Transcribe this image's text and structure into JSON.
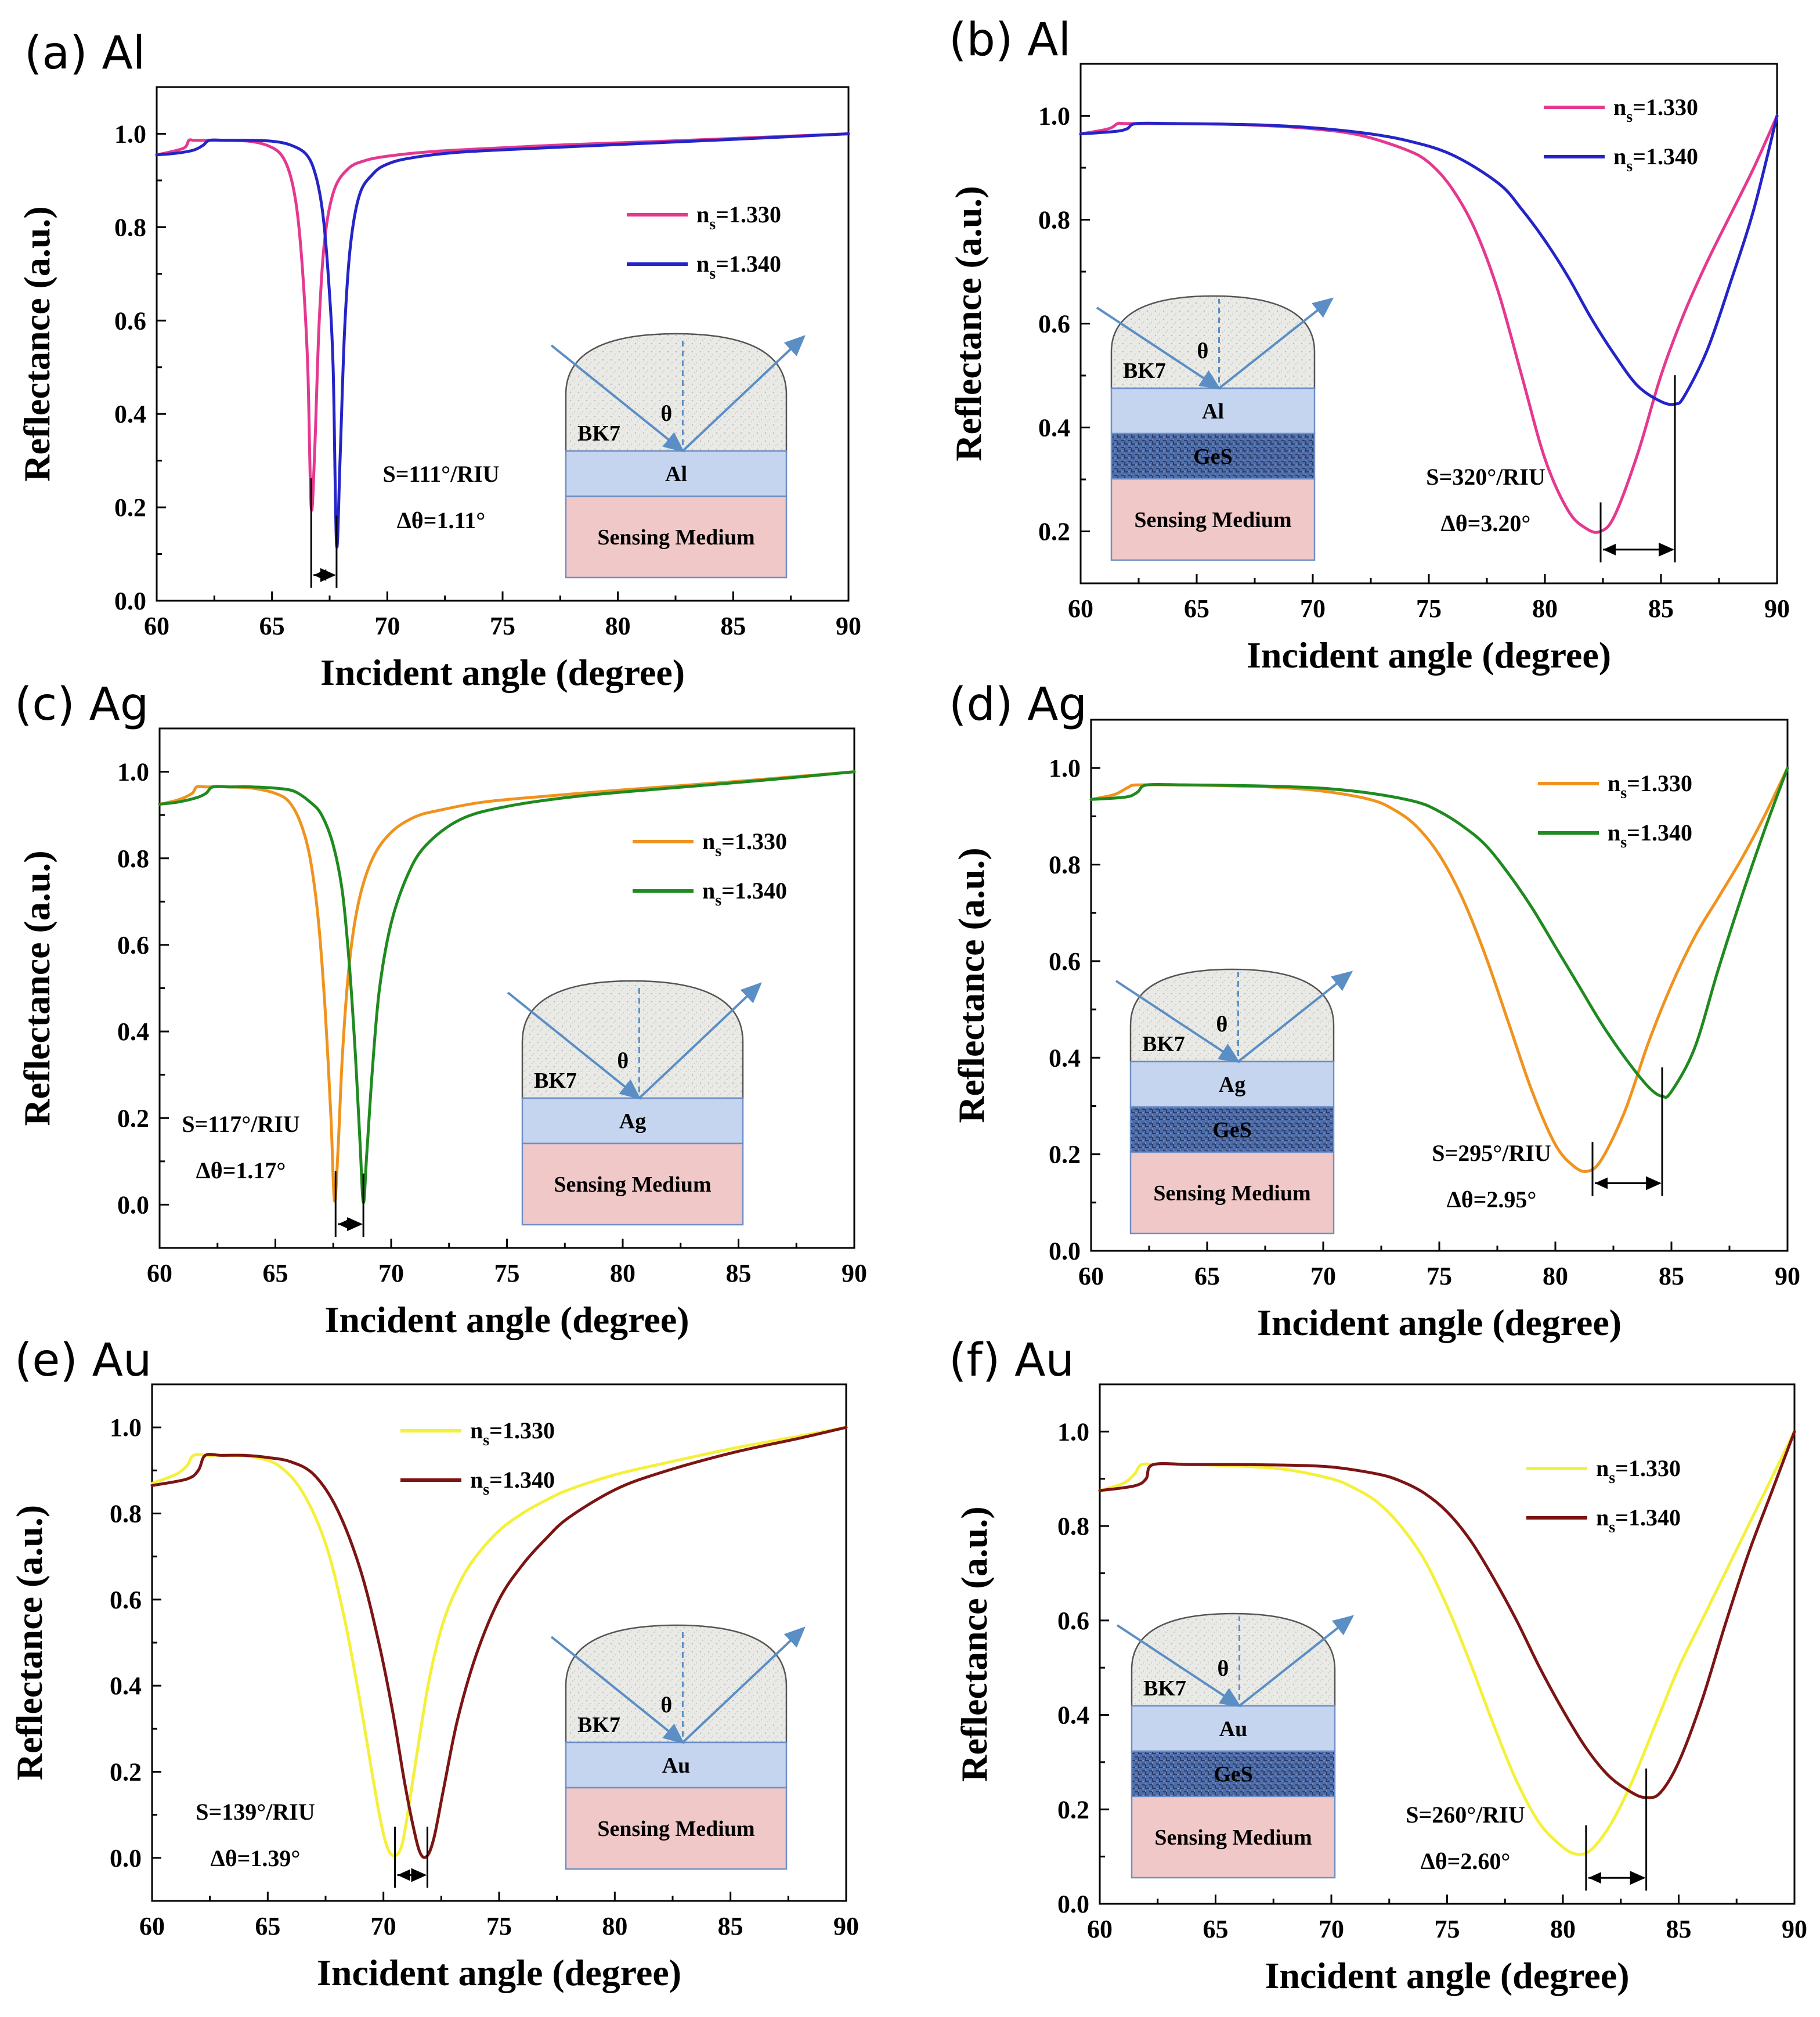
{
  "figure": {
    "colors": {
      "al_ns1": "#e5388f",
      "al_ns2": "#2424c8",
      "ag_ns1": "#f0931e",
      "ag_ns2": "#1f8a1f",
      "au_ns1": "#f5f03a",
      "au_ns2": "#7d1414",
      "prism": "#e9e9e6",
      "metal": "#c6d5ef",
      "ges": "#4d6ca8",
      "medium": "#f0c8c8",
      "layer_border": "#6f8fc6",
      "ray": "#5b8ec4"
    }
  },
  "chart_data": [
    {
      "id": "a",
      "panel_label": "(a) Al",
      "type": "line",
      "xlabel": "Incident angle (degree)",
      "ylabel": "Reflectance (a.u.)",
      "xlim": [
        60,
        90
      ],
      "ylim": [
        0,
        1.1
      ],
      "xticks": [
        "60",
        "65",
        "70",
        "75",
        "80",
        "85",
        "90"
      ],
      "yticks": [
        "0.0",
        "0.2",
        "0.4",
        "0.6",
        "0.8",
        "1.0"
      ],
      "legend": [
        {
          "prefix": "n",
          "sub": "s",
          "value": "=1.330"
        },
        {
          "prefix": "n",
          "sub": "s",
          "value": "=1.340"
        }
      ],
      "series": [
        {
          "name": "n_s=1.330",
          "x": [
            60,
            60.5,
            61.2,
            61.4,
            61.6,
            62,
            63,
            64,
            64.8,
            65.4,
            65.8,
            66.1,
            66.35,
            66.55,
            66.7,
            66.85,
            67.05,
            67.3,
            67.7,
            68.3,
            69,
            70,
            72,
            75,
            78,
            82,
            86,
            90
          ],
          "y": [
            0.955,
            0.96,
            0.97,
            0.986,
            0.986,
            0.986,
            0.986,
            0.984,
            0.975,
            0.955,
            0.91,
            0.83,
            0.69,
            0.5,
            0.2,
            0.32,
            0.6,
            0.78,
            0.88,
            0.925,
            0.942,
            0.952,
            0.962,
            0.97,
            0.977,
            0.984,
            0.992,
            1.0
          ]
        },
        {
          "name": "n_s=1.340",
          "x": [
            60,
            60.8,
            61.6,
            62,
            62.3,
            63,
            64,
            65,
            65.8,
            66.5,
            66.9,
            67.2,
            67.45,
            67.65,
            67.8,
            67.95,
            68.15,
            68.4,
            68.8,
            69.4,
            70,
            71,
            73,
            76,
            80,
            85,
            90
          ],
          "y": [
            0.955,
            0.958,
            0.965,
            0.975,
            0.986,
            0.986,
            0.986,
            0.984,
            0.976,
            0.955,
            0.91,
            0.83,
            0.69,
            0.5,
            0.12,
            0.3,
            0.58,
            0.76,
            0.87,
            0.915,
            0.935,
            0.948,
            0.96,
            0.968,
            0.977,
            0.988,
            1.0
          ]
        }
      ],
      "annotation": {
        "sensitivity": "S=111°/RIU",
        "shift": "Δθ=1.11°",
        "x1": 66.7,
        "x2": 67.8,
        "y_arrow": 0.055
      },
      "inset": {
        "prism": "BK7",
        "angle": "θ",
        "layers": [
          "Al"
        ],
        "medium": "Sensing Medium"
      }
    },
    {
      "id": "b",
      "panel_label": "(b) Al",
      "type": "line",
      "xlabel": "Incident angle (degree)",
      "ylabel": "Reflectance (a.u.)",
      "xlim": [
        60,
        90
      ],
      "ylim": [
        0.1,
        1.1
      ],
      "xticks": [
        "60",
        "65",
        "70",
        "75",
        "80",
        "85",
        "90"
      ],
      "yticks": [
        "0.2",
        "0.4",
        "0.6",
        "0.8",
        "1.0"
      ],
      "legend": [
        {
          "prefix": "n",
          "sub": "s",
          "value": "=1.330"
        },
        {
          "prefix": "n",
          "sub": "s",
          "value": "=1.340"
        }
      ],
      "series": [
        {
          "name": "n_s=1.330",
          "x": [
            60,
            61.2,
            61.6,
            62,
            64,
            66,
            68,
            70,
            72,
            74,
            75,
            76,
            77,
            78,
            79,
            80,
            81,
            81.8,
            82.4,
            83,
            84,
            85,
            86,
            87,
            88,
            89,
            90
          ],
          "y": [
            0.965,
            0.975,
            0.985,
            0.985,
            0.985,
            0.984,
            0.981,
            0.975,
            0.963,
            0.935,
            0.91,
            0.86,
            0.78,
            0.66,
            0.5,
            0.34,
            0.24,
            0.205,
            0.2,
            0.23,
            0.35,
            0.5,
            0.62,
            0.72,
            0.81,
            0.9,
            1.0
          ]
        },
        {
          "name": "n_s=1.340",
          "x": [
            60,
            61.5,
            62,
            62.4,
            64,
            66,
            68,
            70,
            72,
            74,
            76,
            78,
            79,
            80,
            81,
            82,
            83,
            84,
            85,
            85.6,
            86,
            87,
            88,
            89,
            90
          ],
          "y": [
            0.965,
            0.97,
            0.975,
            0.985,
            0.985,
            0.984,
            0.982,
            0.977,
            0.968,
            0.953,
            0.925,
            0.87,
            0.82,
            0.76,
            0.69,
            0.61,
            0.54,
            0.48,
            0.45,
            0.445,
            0.46,
            0.55,
            0.68,
            0.82,
            1.0
          ]
        }
      ],
      "annotation": {
        "sensitivity": "S=320°/RIU",
        "shift": "Δθ=3.20°",
        "x1": 82.4,
        "x2": 85.6,
        "y_arrow": 0.165
      },
      "inset": {
        "prism": "BK7",
        "angle": "θ",
        "layers": [
          "Al",
          "GeS"
        ],
        "medium": "Sensing Medium"
      }
    },
    {
      "id": "c",
      "panel_label": "(c) Ag",
      "type": "line",
      "xlabel": "Incident angle (degree)",
      "ylabel": "Reflectance (a.u.)",
      "xlim": [
        60,
        90
      ],
      "ylim": [
        -0.1,
        1.1
      ],
      "xticks": [
        "60",
        "65",
        "70",
        "75",
        "80",
        "85",
        "90"
      ],
      "yticks": [
        "0.0",
        "0.2",
        "0.4",
        "0.6",
        "0.8",
        "1.0"
      ],
      "legend": [
        {
          "prefix": "n",
          "sub": "s",
          "value": "=1.330"
        },
        {
          "prefix": "n",
          "sub": "s",
          "value": "=1.340"
        }
      ],
      "series": [
        {
          "name": "n_s=1.330",
          "x": [
            60,
            60.8,
            61.4,
            61.6,
            62,
            63,
            64,
            65,
            65.6,
            66.1,
            66.5,
            66.85,
            67.15,
            67.4,
            67.55,
            67.7,
            67.9,
            68.2,
            68.6,
            69.2,
            70,
            71,
            72,
            74,
            77,
            80,
            85,
            90
          ],
          "y": [
            0.925,
            0.935,
            0.95,
            0.965,
            0.965,
            0.965,
            0.962,
            0.95,
            0.93,
            0.88,
            0.8,
            0.66,
            0.45,
            0.2,
            0.01,
            0.12,
            0.35,
            0.56,
            0.7,
            0.8,
            0.86,
            0.895,
            0.91,
            0.93,
            0.945,
            0.958,
            0.978,
            1.0
          ]
        },
        {
          "name": "n_s=1.340",
          "x": [
            60,
            60.8,
            61.6,
            62,
            62.3,
            63,
            64,
            65,
            65.8,
            66.5,
            67,
            67.5,
            67.9,
            68.2,
            68.45,
            68.65,
            68.8,
            68.95,
            69.2,
            69.5,
            70,
            70.7,
            71.5,
            73,
            75,
            78,
            82,
            86,
            90
          ],
          "y": [
            0.925,
            0.93,
            0.94,
            0.95,
            0.965,
            0.965,
            0.965,
            0.962,
            0.955,
            0.93,
            0.9,
            0.83,
            0.72,
            0.55,
            0.35,
            0.15,
            0.005,
            0.12,
            0.32,
            0.5,
            0.65,
            0.76,
            0.83,
            0.89,
            0.92,
            0.943,
            0.962,
            0.98,
            1.0
          ]
        }
      ],
      "annotation": {
        "sensitivity": "S=117°/RIU",
        "shift": "Δθ=1.17°",
        "x1": 67.6,
        "x2": 68.8,
        "y_arrow": -0.045
      },
      "inset": {
        "prism": "BK7",
        "angle": "θ",
        "layers": [
          "Ag"
        ],
        "medium": "Sensing Medium"
      }
    },
    {
      "id": "d",
      "panel_label": "(d) Ag",
      "type": "line",
      "xlabel": "Incident angle (degree)",
      "ylabel": "Reflectance (a.u.)",
      "xlim": [
        60,
        90
      ],
      "ylim": [
        0,
        1.1
      ],
      "xticks": [
        "60",
        "65",
        "70",
        "75",
        "80",
        "85",
        "90"
      ],
      "yticks": [
        "0.0",
        "0.2",
        "0.4",
        "0.6",
        "0.8",
        "1.0"
      ],
      "legend": [
        {
          "prefix": "n",
          "sub": "s",
          "value": "=1.330"
        },
        {
          "prefix": "n",
          "sub": "s",
          "value": "=1.340"
        }
      ],
      "series": [
        {
          "name": "n_s=1.330",
          "x": [
            60,
            61,
            61.6,
            62,
            64,
            66,
            68,
            70,
            72,
            73,
            74,
            75,
            76,
            77,
            78,
            79,
            80,
            80.8,
            81.4,
            82,
            83,
            84,
            85,
            86,
            87,
            88,
            89,
            90
          ],
          "y": [
            0.935,
            0.945,
            0.96,
            0.965,
            0.965,
            0.963,
            0.96,
            0.952,
            0.935,
            0.915,
            0.88,
            0.82,
            0.73,
            0.61,
            0.47,
            0.33,
            0.22,
            0.175,
            0.165,
            0.19,
            0.29,
            0.43,
            0.55,
            0.65,
            0.73,
            0.81,
            0.9,
            1.0
          ]
        },
        {
          "name": "n_s=1.340",
          "x": [
            60,
            61.5,
            62,
            62.4,
            64,
            66,
            68,
            70,
            72,
            74,
            75,
            76,
            77,
            78,
            79,
            80,
            81,
            82,
            83,
            84,
            84.6,
            85,
            86,
            87,
            88,
            89,
            90
          ],
          "y": [
            0.935,
            0.94,
            0.95,
            0.965,
            0.965,
            0.964,
            0.962,
            0.958,
            0.948,
            0.93,
            0.91,
            0.88,
            0.84,
            0.78,
            0.71,
            0.63,
            0.55,
            0.47,
            0.4,
            0.34,
            0.32,
            0.33,
            0.42,
            0.58,
            0.73,
            0.87,
            1.0
          ]
        }
      ],
      "annotation": {
        "sensitivity": "S=295°/RIU",
        "shift": "Δθ=2.95°",
        "x1": 81.6,
        "x2": 84.6,
        "y_arrow": 0.14
      },
      "inset": {
        "prism": "BK7",
        "angle": "θ",
        "layers": [
          "Ag",
          "GeS"
        ],
        "medium": "Sensing Medium"
      }
    },
    {
      "id": "e",
      "panel_label": "(e) Au",
      "type": "line",
      "xlabel": "Incident angle (degree)",
      "ylabel": "Reflectance (a.u.)",
      "xlim": [
        60,
        90
      ],
      "ylim": [
        -0.1,
        1.1
      ],
      "xticks": [
        "60",
        "65",
        "70",
        "75",
        "80",
        "85",
        "90"
      ],
      "yticks": [
        "0.0",
        "0.2",
        "0.4",
        "0.6",
        "0.8",
        "1.0"
      ],
      "legend": [
        {
          "prefix": "n",
          "sub": "s",
          "value": "=1.330"
        },
        {
          "prefix": "n",
          "sub": "s",
          "value": "=1.340"
        }
      ],
      "series": [
        {
          "name": "n_s=1.330",
          "x": [
            60,
            61,
            61.5,
            61.8,
            62.5,
            63.5,
            64.5,
            65.5,
            66.5,
            67.5,
            68.3,
            69,
            69.5,
            69.9,
            70.2,
            70.5,
            70.8,
            71.1,
            71.5,
            72,
            72.6,
            73.3,
            74,
            75,
            76,
            77,
            78,
            80,
            82,
            85,
            88,
            90
          ],
          "y": [
            0.87,
            0.89,
            0.91,
            0.935,
            0.935,
            0.935,
            0.93,
            0.91,
            0.85,
            0.73,
            0.56,
            0.36,
            0.2,
            0.08,
            0.02,
            0.005,
            0.03,
            0.12,
            0.26,
            0.42,
            0.55,
            0.64,
            0.7,
            0.76,
            0.8,
            0.83,
            0.855,
            0.89,
            0.915,
            0.95,
            0.98,
            1.0
          ]
        },
        {
          "name": "n_s=1.340",
          "x": [
            60,
            61.5,
            62,
            62.3,
            63,
            64,
            65,
            66,
            67,
            68,
            69,
            69.8,
            70.4,
            70.9,
            71.3,
            71.6,
            71.9,
            72.2,
            72.6,
            73.2,
            74,
            75,
            76,
            77,
            78,
            80,
            82,
            85,
            88,
            90
          ],
          "y": [
            0.865,
            0.88,
            0.9,
            0.935,
            0.935,
            0.935,
            0.93,
            0.92,
            0.89,
            0.81,
            0.67,
            0.5,
            0.34,
            0.18,
            0.07,
            0.01,
            0.005,
            0.05,
            0.16,
            0.32,
            0.47,
            0.6,
            0.68,
            0.74,
            0.79,
            0.855,
            0.895,
            0.94,
            0.975,
            1.0
          ]
        }
      ],
      "annotation": {
        "sensitivity": "S=139°/RIU",
        "shift": "Δθ=1.39°",
        "x1": 70.5,
        "x2": 71.9,
        "y_arrow": -0.04
      },
      "inset": {
        "prism": "BK7",
        "angle": "θ",
        "layers": [
          "Au"
        ],
        "medium": "Sensing Medium"
      }
    },
    {
      "id": "f",
      "panel_label": "(f) Au",
      "type": "line",
      "xlabel": "Incident angle (degree)",
      "ylabel": "Reflectance (a.u.)",
      "xlim": [
        60,
        90
      ],
      "ylim": [
        0,
        1.1
      ],
      "xticks": [
        "60",
        "65",
        "70",
        "75",
        "80",
        "85",
        "90"
      ],
      "yticks": [
        "0.0",
        "0.2",
        "0.4",
        "0.6",
        "0.8",
        "1.0"
      ],
      "legend": [
        {
          "prefix": "n",
          "sub": "s",
          "value": "=1.330"
        },
        {
          "prefix": "n",
          "sub": "s",
          "value": "=1.340"
        }
      ],
      "series": [
        {
          "name": "n_s=1.330",
          "x": [
            60,
            61,
            61.5,
            61.8,
            62.5,
            64,
            66,
            68,
            70,
            71,
            72,
            73,
            74,
            75,
            76,
            77,
            78,
            79,
            80,
            80.6,
            81.1,
            81.6,
            82.2,
            83,
            84,
            85,
            86,
            87,
            88,
            89,
            90
          ],
          "y": [
            0.875,
            0.89,
            0.91,
            0.93,
            0.93,
            0.93,
            0.927,
            0.92,
            0.9,
            0.88,
            0.85,
            0.8,
            0.73,
            0.63,
            0.51,
            0.38,
            0.26,
            0.17,
            0.12,
            0.105,
            0.11,
            0.135,
            0.18,
            0.26,
            0.38,
            0.5,
            0.6,
            0.7,
            0.8,
            0.9,
            1.0
          ]
        },
        {
          "name": "n_s=1.340",
          "x": [
            60,
            61.5,
            62,
            62.3,
            64,
            66,
            68,
            70,
            72,
            73,
            74,
            75,
            76,
            77,
            78,
            79,
            80,
            81,
            82,
            83,
            83.6,
            84.2,
            85,
            86,
            87,
            88,
            89,
            90
          ],
          "y": [
            0.875,
            0.885,
            0.9,
            0.93,
            0.93,
            0.93,
            0.929,
            0.925,
            0.91,
            0.895,
            0.87,
            0.83,
            0.77,
            0.69,
            0.6,
            0.5,
            0.41,
            0.33,
            0.27,
            0.235,
            0.225,
            0.235,
            0.3,
            0.43,
            0.59,
            0.74,
            0.87,
            1.0
          ]
        }
      ],
      "annotation": {
        "sensitivity": "S=260°/RIU",
        "shift": "Δθ=2.60°",
        "x1": 81.0,
        "x2": 83.6,
        "y_arrow": 0.055
      },
      "inset": {
        "prism": "BK7",
        "angle": "θ",
        "layers": [
          "Au",
          "GeS"
        ],
        "medium": "Sensing Medium"
      }
    }
  ]
}
